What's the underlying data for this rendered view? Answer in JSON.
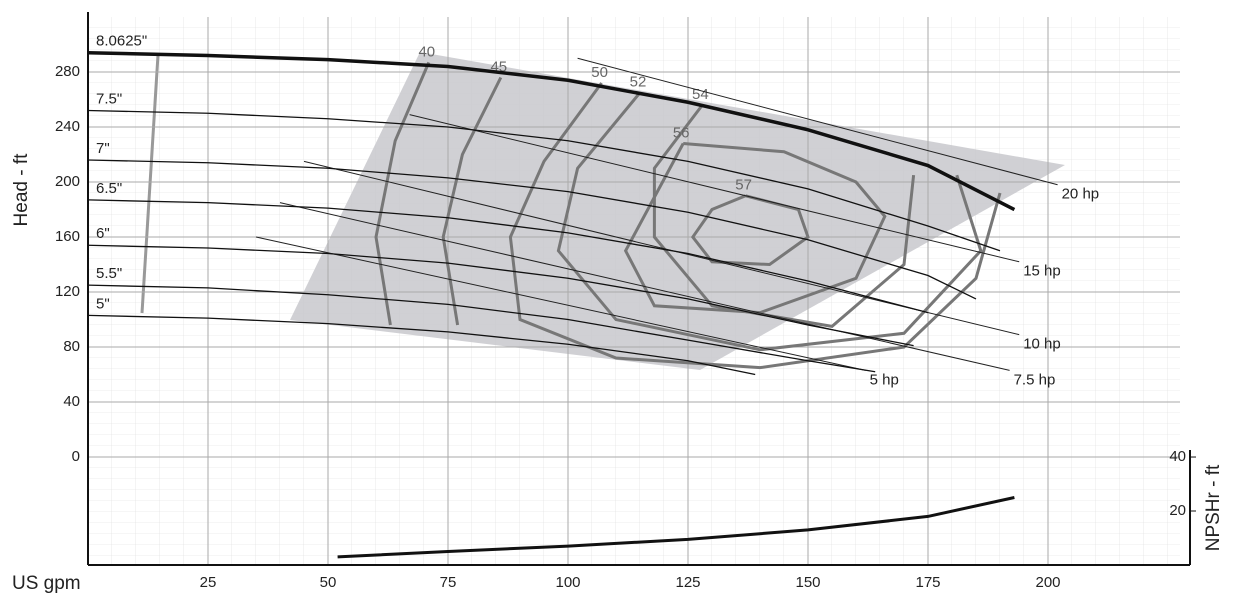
{
  "chart_data": {
    "type": "line",
    "x_label": "US gpm",
    "y_label": "Head - ft",
    "y2_label": "NPSHr - ft",
    "xlim": [
      0,
      227.5
    ],
    "xticks": [
      25,
      50,
      75,
      100,
      125,
      150,
      175,
      200
    ],
    "ylim": [
      -78.5,
      320
    ],
    "yticks": [
      0,
      40,
      80,
      120,
      160,
      200,
      240,
      280
    ],
    "y2lim": [
      0,
      203
    ],
    "y2ticks": [
      20,
      40
    ],
    "grid": true,
    "impeller_curves": {
      "color": "#111111",
      "series": [
        {
          "name": "8.0625\"",
          "x": [
            0,
            25,
            50,
            75,
            100,
            125,
            150,
            175,
            193
          ],
          "values": [
            294,
            292,
            289,
            284,
            274,
            258,
            238,
            212,
            180
          ]
        },
        {
          "name": "7.5\"",
          "x": [
            0,
            25,
            50,
            75,
            100,
            125,
            150,
            175,
            190
          ],
          "values": [
            252,
            250,
            246,
            240,
            230,
            215,
            195,
            168,
            150
          ]
        },
        {
          "name": "7\"",
          "x": [
            0,
            25,
            50,
            75,
            100,
            125,
            150,
            175,
            185
          ],
          "values": [
            216,
            214,
            210,
            203,
            193,
            178,
            158,
            132,
            115
          ]
        },
        {
          "name": "6.5\"",
          "x": [
            0,
            25,
            50,
            75,
            100,
            125,
            150,
            175
          ],
          "values": [
            187,
            185,
            181,
            174,
            163,
            148,
            128,
            105
          ]
        },
        {
          "name": "6\"",
          "x": [
            0,
            25,
            50,
            75,
            100,
            125,
            150,
            172
          ],
          "values": [
            154,
            152,
            148,
            141,
            130,
            115,
            96,
            81
          ]
        },
        {
          "name": "5.5\"",
          "x": [
            0,
            25,
            50,
            75,
            100,
            125,
            150,
            164
          ],
          "values": [
            125,
            123,
            118,
            111,
            100,
            85,
            70,
            62
          ]
        },
        {
          "name": "5\"",
          "x": [
            0,
            25,
            50,
            75,
            100,
            125,
            139
          ],
          "values": [
            103,
            101,
            97,
            91,
            82,
            70,
            60
          ]
        }
      ]
    },
    "power_lines": {
      "color": "#222222",
      "series": [
        {
          "name": "20 hp",
          "x": [
            102,
            202
          ],
          "values": [
            290,
            198
          ]
        },
        {
          "name": "15 hp",
          "x": [
            67,
            194
          ],
          "values": [
            249,
            142
          ]
        },
        {
          "name": "10 hp",
          "x": [
            45,
            194
          ],
          "values": [
            215,
            89
          ]
        },
        {
          "name": "7.5 hp",
          "x": [
            40,
            192
          ],
          "values": [
            185,
            63
          ]
        },
        {
          "name": "5 hp",
          "x": [
            35,
            162
          ],
          "values": [
            160,
            63
          ]
        }
      ]
    },
    "efficiency_contours": {
      "color": "#777777",
      "series": [
        {
          "name": "40",
          "x": [
            71,
            64,
            60,
            63
          ],
          "values": [
            287,
            230,
            160,
            96
          ]
        },
        {
          "name": "45",
          "x": [
            86,
            78,
            74,
            77
          ],
          "values": [
            276,
            220,
            160,
            96
          ]
        },
        {
          "name": "50",
          "x": [
            107,
            95,
            88,
            90,
            110,
            140,
            170,
            185,
            190
          ],
          "values": [
            272,
            215,
            160,
            100,
            72,
            65,
            80,
            130,
            192
          ]
        },
        {
          "name": "52",
          "x": [
            115,
            102,
            98,
            110,
            140,
            170,
            186,
            181
          ],
          "values": [
            265,
            210,
            150,
            100,
            78,
            90,
            150,
            205
          ]
        },
        {
          "name": "54",
          "x": [
            128,
            118,
            118,
            130,
            155,
            170,
            172
          ],
          "values": [
            256,
            210,
            160,
            110,
            95,
            140,
            205
          ]
        },
        {
          "name": "56",
          "x": [
            124,
            145,
            160,
            166,
            160,
            140,
            118,
            112,
            124
          ],
          "values": [
            228,
            222,
            200,
            175,
            130,
            105,
            110,
            150,
            228
          ]
        },
        {
          "name": "57",
          "x": [
            137,
            148,
            150,
            142,
            130,
            126,
            130,
            137
          ],
          "values": [
            190,
            180,
            160,
            140,
            142,
            160,
            180,
            190
          ]
        }
      ]
    },
    "npshr": {
      "color": "#111111",
      "x": [
        52,
        75,
        100,
        125,
        150,
        175,
        193
      ],
      "values": [
        3,
        5,
        7,
        9.5,
        13,
        18,
        25
      ],
      "axis": "y2"
    }
  }
}
